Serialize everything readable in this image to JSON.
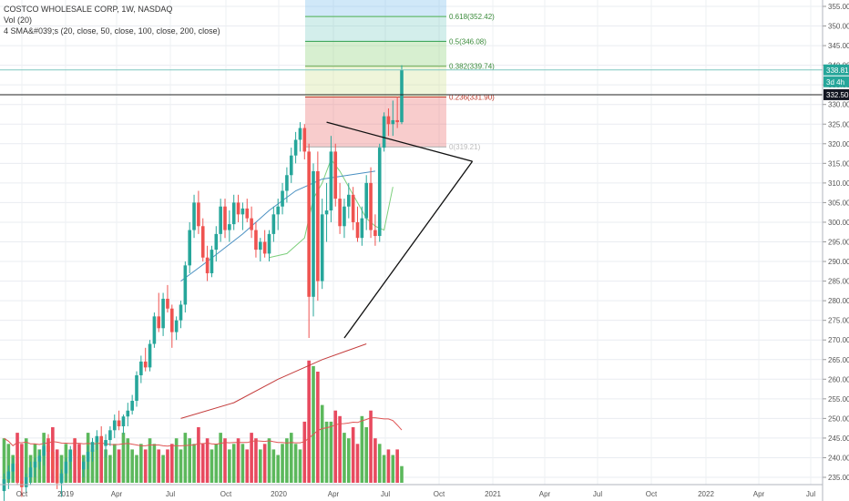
{
  "legend": {
    "title": "COSTCO WHOLESALE CORP, 1W, NASDAQ",
    "vol": "Vol (20)",
    "sma": "4 SMA&#039;s (20, close, 50, close, 100, close, 200, close)"
  },
  "colors": {
    "up": "#26a69a",
    "down": "#ef5350",
    "volUp": "#5cb85c",
    "volDown": "#e84a5f"
  },
  "chart_data": {
    "type": "candlestick",
    "title": "COSTCO WHOLESALE CORP, 1W, NASDAQ",
    "ylim": [
      234,
      357
    ],
    "y_ticks": [
      "235.00",
      "240.00",
      "245.00",
      "250.00",
      "255.00",
      "260.00",
      "265.00",
      "270.00",
      "275.00",
      "280.00",
      "285.00",
      "290.00",
      "295.00",
      "300.00",
      "305.00",
      "310.00",
      "315.00",
      "320.00",
      "325.00",
      "330.00",
      "335.00",
      "340.00",
      "345.00",
      "350.00",
      "355.00"
    ],
    "x_ticks": [
      "Oct",
      "2019",
      "Apr",
      "Jul",
      "Oct",
      "2020",
      "Apr",
      "Jul",
      "Oct",
      "2021",
      "Apr",
      "Jul",
      "Oct",
      "2022",
      "Apr",
      "Jul"
    ],
    "price_label_last": "338.81",
    "countdown_label": "3d 4h",
    "price_label_line": "332.50",
    "fib_levels": [
      {
        "label": "0.618(352.42)",
        "value": 352.42
      },
      {
        "label": "0.5(346.08)",
        "value": 346.08
      },
      {
        "label": "0.382(339.74)",
        "value": 339.74
      },
      {
        "label": "0.236(331.90)",
        "value": 331.9
      },
      {
        "label": "0(319.21)",
        "value": 319.21
      }
    ],
    "triangle": {
      "upper": [
        [
          "2020-02-17",
          325.5
        ],
        [
          "2020-10-05",
          315.5
        ]
      ],
      "lower": [
        [
          "2020-03-16",
          270.5
        ],
        [
          "2020-10-05",
          315.5
        ]
      ]
    },
    "series": [
      {
        "name": "candles",
        "ohlc": [
          [
            231.5,
            236,
            229,
            234.5
          ],
          [
            234.5,
            238,
            232,
            236.5
          ],
          [
            236.5,
            240,
            234,
            238.5
          ],
          [
            238.5,
            241,
            233,
            234
          ],
          [
            234,
            236,
            230,
            232.5
          ],
          [
            232.5,
            236,
            231,
            235
          ],
          [
            235,
            239,
            233,
            237.5
          ],
          [
            237.5,
            240,
            235,
            239
          ],
          [
            239,
            242,
            237,
            240.5
          ],
          [
            240.5,
            244,
            238,
            243
          ],
          [
            243,
            246,
            240,
            241.5
          ],
          [
            241.5,
            243,
            236,
            237
          ],
          [
            237,
            238,
            232,
            233.5
          ],
          [
            233.5,
            237,
            230,
            236
          ],
          [
            236,
            240,
            234,
            239
          ],
          [
            239,
            243,
            237,
            242
          ],
          [
            242,
            245,
            239,
            240.5
          ],
          [
            240.5,
            242,
            236,
            237
          ],
          [
            237,
            240,
            235,
            239
          ],
          [
            239,
            243,
            237,
            241.5
          ],
          [
            241.5,
            245,
            239,
            244
          ],
          [
            244,
            247,
            242,
            245.5
          ],
          [
            245.5,
            248,
            242,
            243
          ],
          [
            243,
            246,
            240,
            244.5
          ],
          [
            244.5,
            248,
            243,
            247
          ],
          [
            247,
            251,
            245,
            249.5
          ],
          [
            249.5,
            252,
            247,
            248
          ],
          [
            248,
            251,
            246,
            250.5
          ],
          [
            250.5,
            254,
            248,
            252
          ],
          [
            252,
            256,
            251,
            254.5
          ],
          [
            254.5,
            262,
            253,
            261
          ],
          [
            261,
            266,
            259,
            264.5
          ],
          [
            264.5,
            268,
            262,
            263
          ],
          [
            263,
            270,
            262,
            269
          ],
          [
            269,
            277,
            268,
            276
          ],
          [
            276,
            282,
            272,
            273
          ],
          [
            273,
            282,
            271,
            280.5
          ],
          [
            280.5,
            284,
            277,
            278
          ],
          [
            278,
            279,
            268,
            272
          ],
          [
            272,
            276,
            270,
            275
          ],
          [
            275,
            280,
            273,
            279
          ],
          [
            279,
            290,
            277,
            289
          ],
          [
            289,
            300,
            287,
            298
          ],
          [
            298,
            307,
            296,
            305
          ],
          [
            305,
            308,
            297,
            299
          ],
          [
            299,
            301,
            290,
            291
          ],
          [
            291,
            294,
            285,
            287
          ],
          [
            287,
            294,
            286,
            293
          ],
          [
            293,
            299,
            290,
            297
          ],
          [
            297,
            306,
            295,
            304
          ],
          [
            304,
            306,
            296,
            298
          ],
          [
            298,
            303,
            295,
            299.5
          ],
          [
            299.5,
            307,
            298,
            305
          ],
          [
            305,
            307,
            300,
            302
          ],
          [
            302,
            305,
            298,
            303.5
          ],
          [
            303.5,
            306,
            300,
            301
          ],
          [
            301,
            304,
            296,
            298
          ],
          [
            298,
            300,
            291,
            293
          ],
          [
            293,
            296,
            290,
            295
          ],
          [
            295,
            298,
            291,
            292
          ],
          [
            292,
            298,
            290,
            297
          ],
          [
            297,
            304,
            295,
            302
          ],
          [
            302,
            306,
            298,
            304
          ],
          [
            304,
            310,
            302,
            308
          ],
          [
            308,
            314,
            305,
            312
          ],
          [
            312,
            319,
            310,
            317
          ],
          [
            317,
            323,
            315,
            321
          ],
          [
            321,
            325.5,
            318,
            324
          ],
          [
            324,
            325,
            316,
            318
          ],
          [
            318,
            320,
            270.5,
            281
          ],
          [
            281,
            315,
            276,
            313
          ],
          [
            313,
            318,
            280,
            285
          ],
          [
            285,
            306,
            283,
            302
          ],
          [
            302,
            310,
            295,
            303
          ],
          [
            303,
            322,
            300,
            318
          ],
          [
            318,
            320,
            304,
            306
          ],
          [
            306,
            310,
            297,
            299
          ],
          [
            299,
            306,
            296,
            304
          ],
          [
            304,
            310,
            301,
            307
          ],
          [
            307,
            309,
            298,
            300
          ],
          [
            300,
            304,
            295,
            296
          ],
          [
            296,
            304,
            294,
            301
          ],
          [
            301,
            312,
            298,
            310
          ],
          [
            310,
            314,
            296,
            298
          ],
          [
            298,
            302,
            294,
            296.5
          ],
          [
            296.5,
            320,
            295,
            319
          ],
          [
            319,
            328,
            318,
            327
          ],
          [
            327,
            329,
            322,
            325
          ],
          [
            325,
            331,
            322,
            326
          ],
          [
            326,
            332,
            324,
            325.5
          ],
          [
            325.5,
            340,
            325,
            338.81
          ]
        ]
      },
      {
        "name": "Vol",
        "volumes": [
          8,
          7,
          5,
          9,
          7,
          8,
          5,
          7,
          6,
          9,
          8,
          10,
          6,
          5,
          7,
          6,
          8,
          7,
          5,
          9,
          6,
          8,
          7,
          6,
          5,
          7,
          6,
          9,
          8,
          6,
          5,
          7,
          6,
          8,
          7,
          6,
          5,
          6,
          7,
          8,
          6,
          9,
          8,
          7,
          10,
          7,
          8,
          6,
          7,
          9,
          8,
          6,
          7,
          8,
          7,
          6,
          9,
          8,
          6,
          7,
          8,
          6,
          5,
          7,
          8,
          9,
          7,
          6,
          11,
          22,
          21,
          20,
          14,
          11,
          11,
          13,
          12,
          9,
          8,
          10,
          7,
          12,
          10,
          13,
          8,
          7,
          5,
          6,
          5,
          6,
          3
        ]
      },
      {
        "name": "SMA 20",
        "values": [
          [
            60,
            291
          ],
          [
            64,
            292
          ],
          [
            68,
            296
          ],
          [
            70,
            306
          ],
          [
            72,
            310
          ],
          [
            74,
            316
          ],
          [
            76,
            313
          ],
          [
            78,
            309
          ],
          [
            80,
            305
          ],
          [
            82,
            301
          ],
          [
            84,
            299
          ],
          [
            86,
            298
          ],
          [
            88,
            309
          ]
        ]
      },
      {
        "name": "SMA 50",
        "values": [
          [
            40,
            285
          ],
          [
            46,
            290
          ],
          [
            54,
            297
          ],
          [
            60,
            303
          ],
          [
            66,
            308
          ],
          [
            72,
            311
          ],
          [
            78,
            312
          ],
          [
            84,
            313
          ]
        ]
      },
      {
        "name": "SMA 100",
        "values": [
          [
            40,
            250
          ],
          [
            52,
            254
          ],
          [
            62,
            260
          ],
          [
            72,
            265
          ],
          [
            82,
            269
          ]
        ]
      }
    ]
  }
}
